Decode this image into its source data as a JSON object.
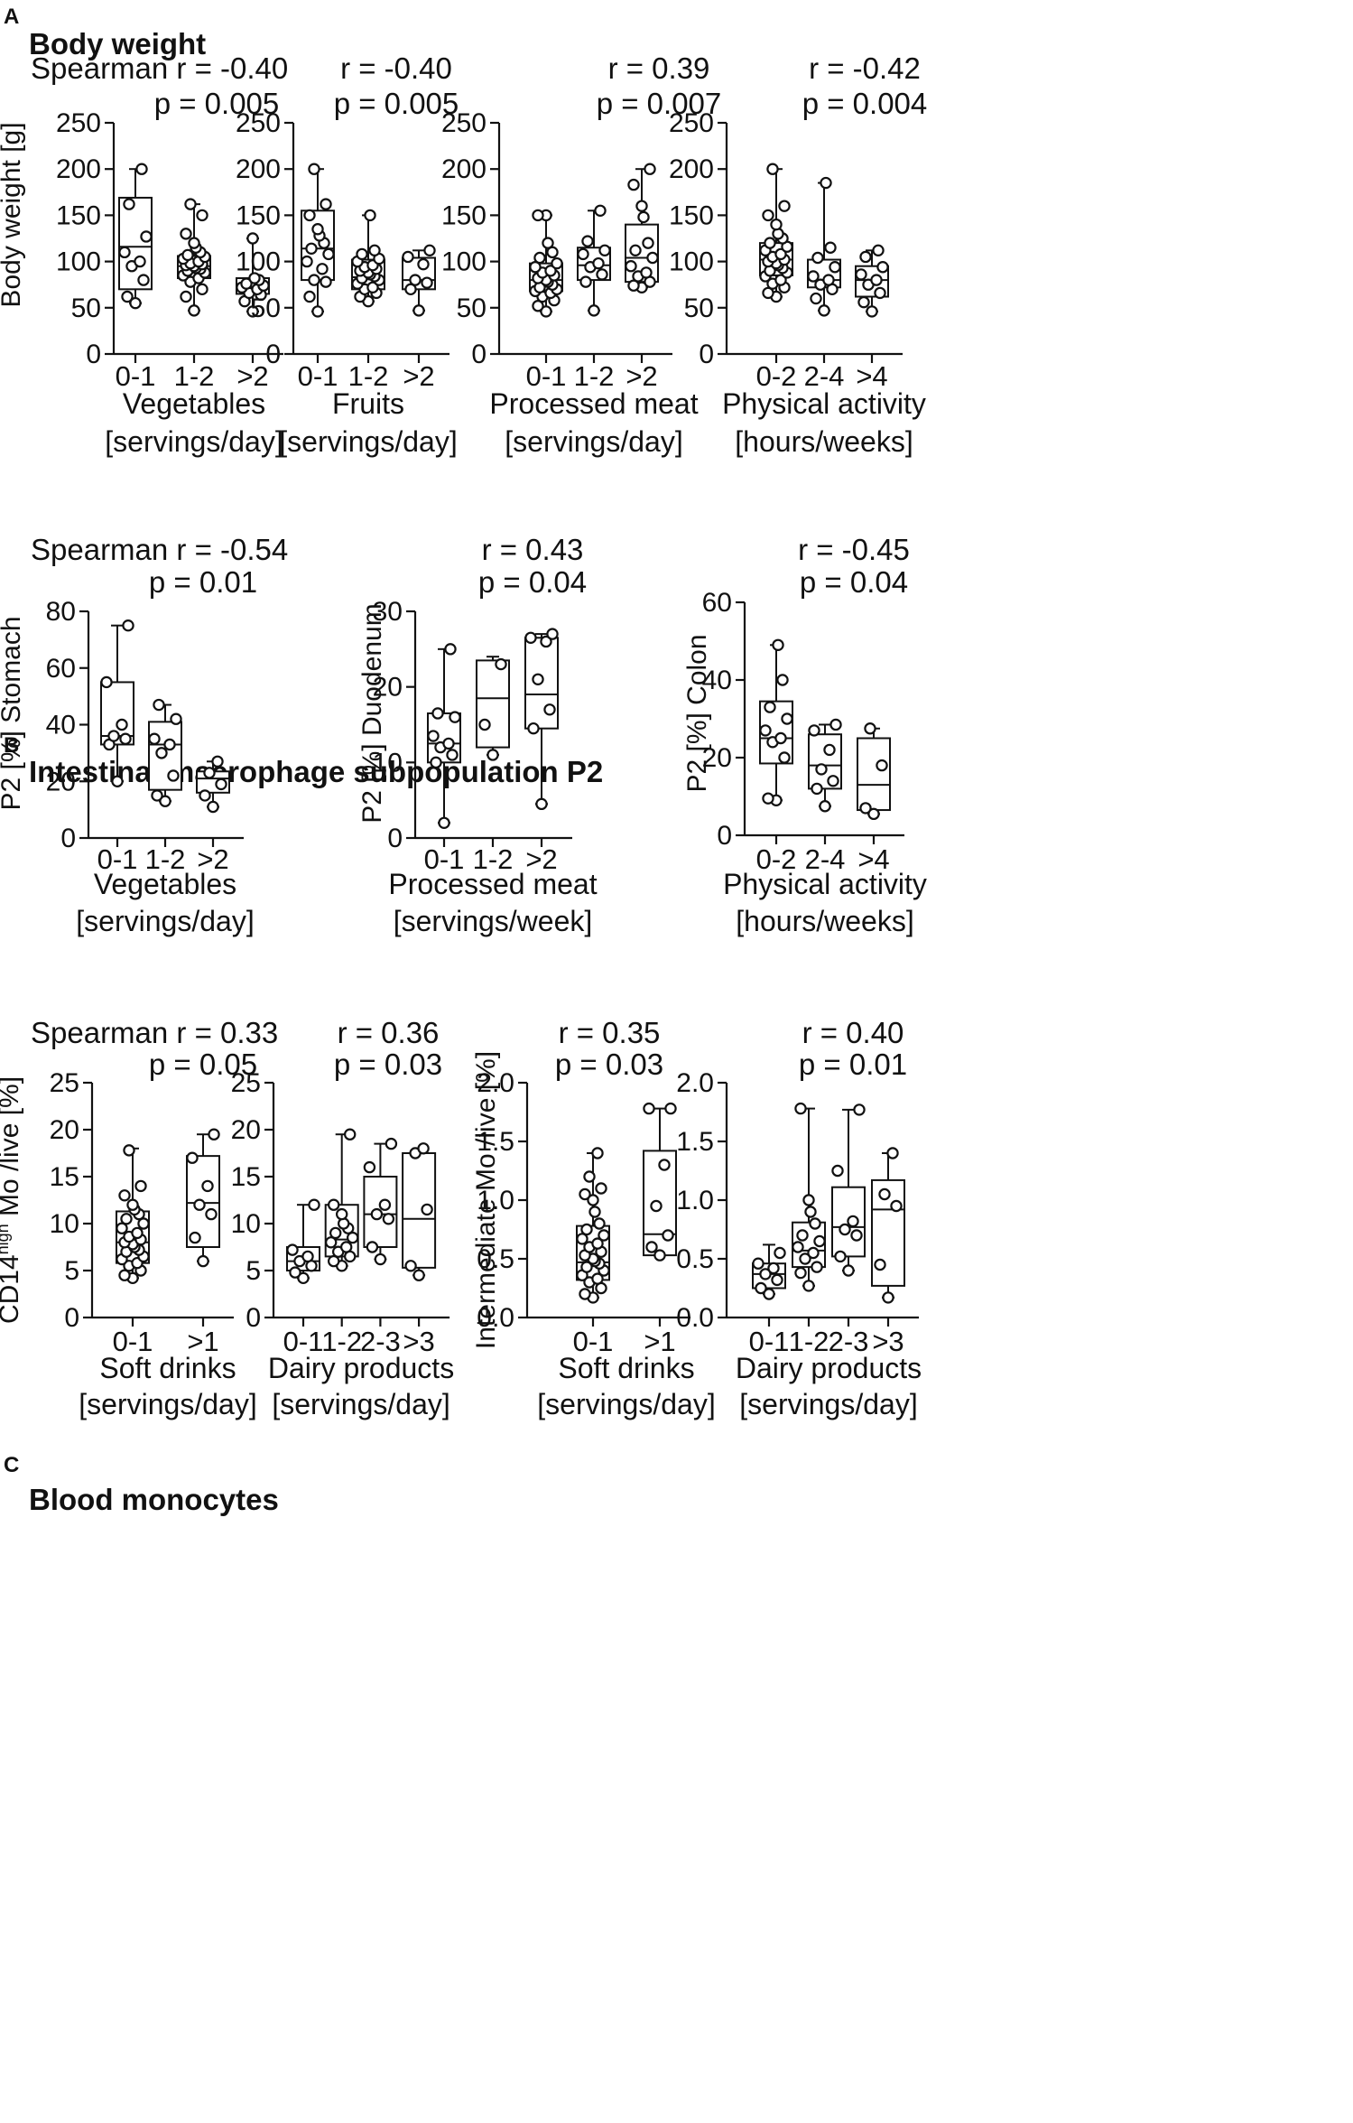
{
  "panels": [
    {
      "letter": "A",
      "title": "Body weight"
    },
    {
      "letter": "B",
      "title": "Intestinal macrophage subpopulation P2"
    },
    {
      "letter": "C",
      "title": "Blood monocytes"
    }
  ],
  "chart_data": [
    {
      "type": "box",
      "panel": "A",
      "title": "Vegetables [servings/day]",
      "stat_r": "Spearman r = -0.40",
      "stat_p": "p = 0.005",
      "xlabel_lines": [
        "Vegetables",
        "[servings/day]"
      ],
      "ylabel": "Body weight  [g]",
      "ylabel_sup": "",
      "ylabel_tail": "",
      "ylim": [
        0,
        250
      ],
      "yticks": [
        0,
        50,
        100,
        150,
        200,
        250
      ],
      "ytick_labels": [
        "0",
        "50",
        "100",
        "150",
        "200",
        "250"
      ],
      "categories": [
        "0-1",
        "1-2",
        ">2"
      ],
      "boxes": [
        {
          "min": 55,
          "q1": 70,
          "median": 116,
          "q3": 169,
          "max": 200,
          "points": [
            55,
            62,
            80,
            95,
            100,
            110,
            127,
            162,
            200
          ]
        },
        {
          "min": 47,
          "q1": 82,
          "median": 95,
          "q3": 106,
          "max": 162,
          "points": [
            47,
            62,
            70,
            78,
            82,
            85,
            88,
            90,
            92,
            93,
            95,
            96,
            97,
            98,
            100,
            103,
            105,
            107,
            110,
            115,
            120,
            130,
            150,
            162
          ]
        },
        {
          "min": 46,
          "q1": 65,
          "median": 72,
          "q3": 82,
          "max": 125,
          "points": [
            46,
            57,
            64,
            66,
            70,
            72,
            74,
            76,
            80,
            82,
            125
          ]
        }
      ]
    },
    {
      "type": "box",
      "panel": "A",
      "title": "Fruits [servings/day]",
      "stat_r": "r = -0.40",
      "stat_p": "p = 0.005",
      "xlabel_lines": [
        "Fruits",
        "[servings/day]"
      ],
      "ylabel": "",
      "ylabel_sup": "",
      "ylabel_tail": "",
      "ylim": [
        0,
        250
      ],
      "yticks": [
        0,
        50,
        100,
        150,
        200,
        250
      ],
      "ytick_labels": [
        "0",
        "50",
        "100",
        "150",
        "200",
        "250"
      ],
      "categories": [
        "0-1",
        "1-2",
        ">2"
      ],
      "boxes": [
        {
          "min": 46,
          "q1": 80,
          "median": 114,
          "q3": 155,
          "max": 200,
          "points": [
            46,
            62,
            78,
            80,
            92,
            100,
            108,
            114,
            120,
            128,
            135,
            150,
            162,
            200
          ]
        },
        {
          "min": 57,
          "q1": 70,
          "median": 83,
          "q3": 102,
          "max": 150,
          "points": [
            57,
            62,
            66,
            70,
            72,
            76,
            80,
            82,
            84,
            86,
            88,
            90,
            92,
            94,
            96,
            100,
            103,
            108,
            112,
            150
          ]
        },
        {
          "min": 47,
          "q1": 70,
          "median": 80,
          "q3": 104,
          "max": 112,
          "points": [
            47,
            70,
            77,
            80,
            97,
            105,
            112
          ]
        }
      ]
    },
    {
      "type": "box",
      "panel": "A",
      "title": "Processed meat [servings/day]",
      "stat_r": "r = 0.39",
      "stat_p": "p = 0.007",
      "xlabel_lines": [
        "Processed meat",
        "[servings/day]"
      ],
      "ylabel": "",
      "ylabel_sup": "",
      "ylabel_tail": "",
      "ylim": [
        0,
        250
      ],
      "yticks": [
        0,
        50,
        100,
        150,
        200,
        250
      ],
      "ytick_labels": [
        "0",
        "50",
        "100",
        "150",
        "200",
        "250"
      ],
      "categories": [
        "0-1",
        "1-2",
        ">2"
      ],
      "boxes": [
        {
          "min": 46,
          "q1": 68,
          "median": 80,
          "q3": 98,
          "max": 150,
          "points": [
            46,
            52,
            58,
            62,
            66,
            68,
            70,
            72,
            75,
            78,
            80,
            82,
            85,
            88,
            90,
            94,
            98,
            104,
            110,
            120,
            150,
            150
          ]
        },
        {
          "min": 47,
          "q1": 80,
          "median": 96,
          "q3": 115,
          "max": 155,
          "points": [
            47,
            78,
            86,
            94,
            98,
            108,
            112,
            122,
            155
          ]
        },
        {
          "min": 72,
          "q1": 78,
          "median": 104,
          "q3": 140,
          "max": 200,
          "points": [
            72,
            74,
            78,
            84,
            88,
            95,
            104,
            112,
            120,
            148,
            160,
            183,
            200
          ]
        }
      ]
    },
    {
      "type": "box",
      "panel": "A",
      "title": "Physical activity [hours/weeks]",
      "stat_r": "r = -0.42",
      "stat_p": "p = 0.004",
      "xlabel_lines": [
        "Physical activity",
        "[hours/weeks]"
      ],
      "ylabel": "",
      "ylabel_sup": "",
      "ylabel_tail": "",
      "ylim": [
        0,
        250
      ],
      "yticks": [
        0,
        50,
        100,
        150,
        200,
        250
      ],
      "ytick_labels": [
        "0",
        "50",
        "100",
        "150",
        "200",
        "250"
      ],
      "categories": [
        "0-2",
        "2-4",
        ">4"
      ],
      "boxes": [
        {
          "min": 62,
          "q1": 85,
          "median": 102,
          "q3": 120,
          "max": 200,
          "points": [
            62,
            66,
            72,
            76,
            80,
            84,
            88,
            90,
            93,
            96,
            98,
            100,
            102,
            105,
            108,
            112,
            116,
            120,
            125,
            130,
            140,
            150,
            160,
            200
          ]
        },
        {
          "min": 47,
          "q1": 72,
          "median": 80,
          "q3": 102,
          "max": 185,
          "points": [
            47,
            60,
            70,
            75,
            80,
            84,
            94,
            104,
            115,
            185
          ]
        },
        {
          "min": 46,
          "q1": 62,
          "median": 80,
          "q3": 95,
          "max": 112,
          "points": [
            46,
            56,
            66,
            75,
            80,
            86,
            94,
            105,
            112
          ]
        }
      ]
    },
    {
      "type": "box",
      "panel": "B",
      "title": "Vegetables [servings/day]",
      "stat_r": "Spearman r = -0.54",
      "stat_p": "p = 0.01",
      "xlabel_lines": [
        "Vegetables",
        "[servings/day]"
      ],
      "ylabel": "P2 [%] Stomach",
      "ylabel_sup": "",
      "ylabel_tail": "",
      "ylim": [
        0,
        80
      ],
      "yticks": [
        0,
        20,
        40,
        60,
        80
      ],
      "ytick_labels": [
        "0",
        "20",
        "40",
        "60",
        "80"
      ],
      "categories": [
        "0-1",
        "1-2",
        ">2"
      ],
      "boxes": [
        {
          "min": 20,
          "q1": 33,
          "median": 36,
          "q3": 55,
          "max": 75,
          "points": [
            20,
            33,
            35,
            36,
            40,
            55,
            75
          ]
        },
        {
          "min": 13,
          "q1": 17,
          "median": 33,
          "q3": 41,
          "max": 47,
          "points": [
            13,
            15,
            22,
            30,
            33,
            35,
            42,
            47
          ]
        },
        {
          "min": 11,
          "q1": 16,
          "median": 21,
          "q3": 23.5,
          "max": 27,
          "points": [
            11,
            15,
            19,
            23,
            27
          ]
        }
      ]
    },
    {
      "type": "box",
      "panel": "B",
      "title": "Processed meat [servings/week]",
      "stat_r": "r = 0.43",
      "stat_p": "p = 0.04",
      "xlabel_lines": [
        "Processed meat",
        "[servings/week]"
      ],
      "ylabel": "P2 [%] Duodenum",
      "ylabel_sup": "",
      "ylabel_tail": "",
      "ylim": [
        0,
        30
      ],
      "yticks": [
        0,
        10,
        20,
        30
      ],
      "ytick_labels": [
        "0",
        "10",
        "20",
        "30"
      ],
      "categories": [
        "0-1",
        "1-2",
        ">2"
      ],
      "boxes": [
        {
          "min": 2,
          "q1": 10,
          "median": 12.5,
          "q3": 16.5,
          "max": 25,
          "points": [
            2,
            10,
            11,
            12,
            12.5,
            13.5,
            16,
            16.5,
            25
          ]
        },
        {
          "min": 11,
          "q1": 12,
          "median": 18.5,
          "q3": 23.5,
          "max": 24,
          "points": [
            11,
            15,
            23
          ]
        },
        {
          "min": 4.5,
          "q1": 14.5,
          "median": 19,
          "q3": 26.5,
          "max": 27,
          "points": [
            4.5,
            14.5,
            17,
            21,
            26,
            26.5,
            27
          ]
        }
      ]
    },
    {
      "type": "box",
      "panel": "B",
      "title": "Physical activity [hours/weeks]",
      "stat_r": "r = -0.45",
      "stat_p": "p = 0.04",
      "xlabel_lines": [
        "Physical activity",
        "[hours/weeks]"
      ],
      "ylabel": "P2 [%] Colon",
      "ylabel_sup": "",
      "ylabel_tail": "",
      "ylim": [
        0,
        60
      ],
      "yticks": [
        0,
        20,
        40,
        60
      ],
      "ytick_labels": [
        "0",
        "20",
        "40",
        "60"
      ],
      "categories": [
        "0-2",
        "2-4",
        ">4"
      ],
      "boxes": [
        {
          "min": 9,
          "q1": 18.5,
          "median": 25,
          "q3": 34.5,
          "max": 49,
          "points": [
            9,
            9.5,
            20,
            24,
            25,
            27,
            30,
            33,
            40,
            49
          ]
        },
        {
          "min": 7.5,
          "q1": 12,
          "median": 18,
          "q3": 26,
          "max": 28.5,
          "points": [
            7.5,
            12,
            14,
            17,
            22,
            27,
            28.5
          ]
        },
        {
          "min": 5.5,
          "q1": 6.5,
          "median": 13,
          "q3": 25,
          "max": 27.5,
          "points": [
            5.5,
            7,
            18,
            27.5
          ]
        }
      ]
    },
    {
      "type": "box",
      "panel": "C",
      "title": "Soft drinks [servings/day]",
      "stat_r": "Spearman r = 0.33",
      "stat_p": "p = 0.05",
      "xlabel_lines": [
        "Soft drinks",
        "[servings/day]"
      ],
      "ylabel": "CD14",
      "ylabel_sup": "high",
      "ylabel_tail": " Mo /live [%]",
      "ylim": [
        0,
        25
      ],
      "yticks": [
        0,
        5,
        10,
        15,
        20,
        25
      ],
      "ytick_labels": [
        "0",
        "5",
        "10",
        "15",
        "20",
        "25"
      ],
      "categories": [
        "0-1",
        ">1"
      ],
      "boxes": [
        {
          "min": 4.2,
          "q1": 5.8,
          "median": 8,
          "q3": 11.3,
          "max": 18,
          "points": [
            4.2,
            4.5,
            5,
            5.5,
            5.8,
            6.2,
            6.5,
            7,
            7.2,
            7.5,
            7.8,
            8,
            8.3,
            8.6,
            9,
            9.5,
            10,
            10.5,
            11,
            11.5,
            12,
            13,
            14,
            17.8
          ]
        },
        {
          "min": 6,
          "q1": 7.5,
          "median": 12.2,
          "q3": 17.2,
          "max": 19.5,
          "points": [
            6,
            8.5,
            11,
            12,
            14,
            17,
            19.5
          ]
        }
      ]
    },
    {
      "type": "box",
      "panel": "C",
      "title": "Dairy products [servings/day]",
      "stat_r": "r = 0.36",
      "stat_p": "p = 0.03",
      "xlabel_lines": [
        "Dairy products",
        "[servings/day]"
      ],
      "ylabel": "",
      "ylabel_sup": "",
      "ylabel_tail": "",
      "ylim": [
        0,
        25
      ],
      "yticks": [
        0,
        5,
        10,
        15,
        20,
        25
      ],
      "ytick_labels": [
        "0",
        "5",
        "10",
        "15",
        "20",
        "25"
      ],
      "categories": [
        "0-1",
        "1-2",
        "2-3",
        ">3"
      ],
      "boxes": [
        {
          "min": 4.2,
          "q1": 5,
          "median": 6,
          "q3": 7.5,
          "max": 12,
          "points": [
            4.2,
            4.8,
            5.5,
            6,
            6.5,
            7.2,
            12
          ]
        },
        {
          "min": 5.5,
          "q1": 6.5,
          "median": 8.3,
          "q3": 12,
          "max": 19.5,
          "points": [
            5.5,
            6,
            6.5,
            7,
            7.5,
            8,
            8.5,
            9,
            9.5,
            10,
            11,
            12,
            19.5
          ]
        },
        {
          "min": 6.2,
          "q1": 7.5,
          "median": 11,
          "q3": 15,
          "max": 18.5,
          "points": [
            6.2,
            7.5,
            10.5,
            11,
            12,
            16,
            18.5
          ]
        },
        {
          "min": 4.5,
          "q1": 5.3,
          "median": 10.5,
          "q3": 17.5,
          "max": 18,
          "points": [
            4.5,
            5.5,
            11.5,
            17.5,
            18
          ]
        }
      ]
    },
    {
      "type": "box",
      "panel": "C",
      "title": "Soft drinks [servings/day]",
      "stat_r": "r = 0.35",
      "stat_p": "p = 0.03",
      "xlabel_lines": [
        "Soft drinks",
        "[servings/day]"
      ],
      "ylabel": "Intermediate Mo /live [%]",
      "ylabel_sup": "",
      "ylabel_tail": "",
      "ylim": [
        0,
        2
      ],
      "yticks": [
        0,
        0.5,
        1,
        1.5,
        2
      ],
      "ytick_labels": [
        "0.0",
        "0.5",
        "1.0",
        "1.5",
        "2.0"
      ],
      "categories": [
        "0-1",
        ">1"
      ],
      "boxes": [
        {
          "min": 0.17,
          "q1": 0.32,
          "median": 0.47,
          "q3": 0.78,
          "max": 1.4,
          "points": [
            0.17,
            0.2,
            0.25,
            0.3,
            0.33,
            0.36,
            0.4,
            0.43,
            0.46,
            0.48,
            0.5,
            0.53,
            0.56,
            0.6,
            0.63,
            0.67,
            0.7,
            0.75,
            0.8,
            0.9,
            1.0,
            1.05,
            1.1,
            1.2,
            1.4
          ]
        },
        {
          "min": 0.53,
          "q1": 0.53,
          "median": 0.71,
          "q3": 1.42,
          "max": 1.78,
          "points": [
            0.53,
            0.6,
            0.7,
            0.95,
            1.3,
            1.78,
            1.78
          ]
        }
      ]
    },
    {
      "type": "box",
      "panel": "C",
      "title": "Dairy products [servings/day]",
      "stat_r": "r = 0.40",
      "stat_p": "p = 0.01",
      "xlabel_lines": [
        "Dairy products",
        "[servings/day]"
      ],
      "ylabel": "",
      "ylabel_sup": "",
      "ylabel_tail": "",
      "ylim": [
        0,
        2
      ],
      "yticks": [
        0,
        0.5,
        1,
        1.5,
        2
      ],
      "ytick_labels": [
        "0.0",
        "0.5",
        "1.0",
        "1.5",
        "2.0"
      ],
      "categories": [
        "0-1",
        "1-2",
        "2-3",
        ">3"
      ],
      "boxes": [
        {
          "min": 0.2,
          "q1": 0.25,
          "median": 0.37,
          "q3": 0.46,
          "max": 0.62,
          "points": [
            0.2,
            0.25,
            0.32,
            0.37,
            0.42,
            0.46,
            0.55
          ]
        },
        {
          "min": 0.27,
          "q1": 0.43,
          "median": 0.57,
          "q3": 0.81,
          "max": 1.78,
          "points": [
            0.27,
            0.38,
            0.43,
            0.5,
            0.55,
            0.6,
            0.65,
            0.7,
            0.8,
            0.9,
            1.0,
            1.78
          ]
        },
        {
          "min": 0.4,
          "q1": 0.52,
          "median": 0.77,
          "q3": 1.11,
          "max": 1.77,
          "points": [
            0.4,
            0.52,
            0.7,
            0.75,
            0.82,
            1.25,
            1.77
          ]
        },
        {
          "min": 0.17,
          "q1": 0.27,
          "median": 0.92,
          "q3": 1.17,
          "max": 1.4,
          "points": [
            0.17,
            0.45,
            0.95,
            1.05,
            1.4
          ]
        }
      ]
    }
  ]
}
